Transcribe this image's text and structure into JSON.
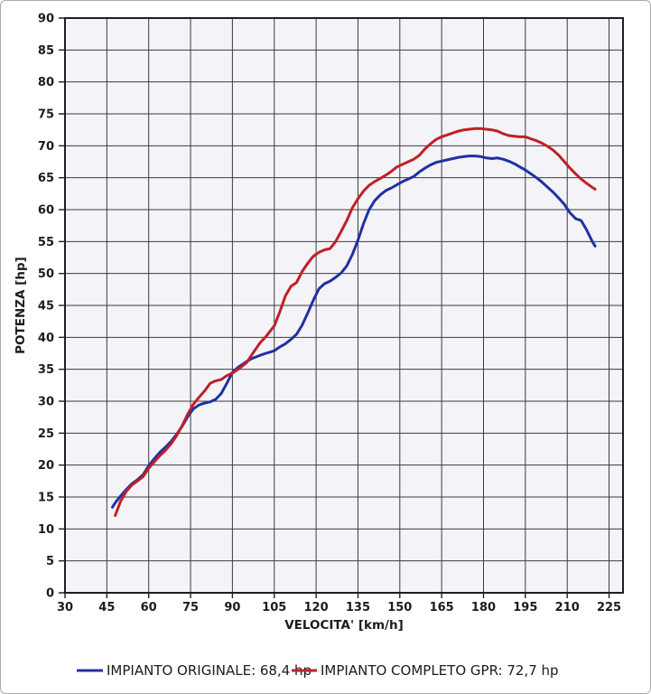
{
  "window": {
    "background": "#ffffff",
    "border_color": "#ababab"
  },
  "chart_data": {
    "type": "line",
    "title": "",
    "xlabel": "VELOCITA' [km/h]",
    "ylabel": "POTENZA [hp]",
    "x_domain": [
      30,
      230
    ],
    "y_domain": [
      0,
      90
    ],
    "x_ticks": [
      30,
      45,
      60,
      75,
      90,
      105,
      120,
      135,
      150,
      165,
      180,
      195,
      210,
      225
    ],
    "y_ticks": [
      0,
      5,
      10,
      15,
      20,
      25,
      30,
      35,
      40,
      45,
      50,
      55,
      60,
      65,
      70,
      75,
      80,
      85,
      90
    ],
    "grid": true,
    "legend_position": "bottom",
    "plot_background": "#f3f3f8",
    "grid_color": "#3c3c3c",
    "frame_color": "#1f1f1f",
    "text_color": "#1c1c1c",
    "series": [
      {
        "name": "impianto-originale",
        "label": "IMPIANTO ORIGINALE: 68,4 hp",
        "color": "#2130a3",
        "points": [
          [
            47,
            13.4
          ],
          [
            48,
            14.1
          ],
          [
            50,
            15.2
          ],
          [
            52,
            16.2
          ],
          [
            54,
            17.1
          ],
          [
            56,
            17.7
          ],
          [
            58,
            18.5
          ],
          [
            60,
            19.9
          ],
          [
            62,
            21.0
          ],
          [
            64,
            22.0
          ],
          [
            66,
            22.8
          ],
          [
            68,
            23.7
          ],
          [
            70,
            24.8
          ],
          [
            72,
            26.1
          ],
          [
            74,
            27.6
          ],
          [
            76,
            28.8
          ],
          [
            78,
            29.4
          ],
          [
            80,
            29.7
          ],
          [
            82,
            29.9
          ],
          [
            84,
            30.3
          ],
          [
            86,
            31.2
          ],
          [
            88,
            32.8
          ],
          [
            90,
            34.5
          ],
          [
            92,
            35.3
          ],
          [
            95,
            36.2
          ],
          [
            97,
            36.7
          ],
          [
            100,
            37.2
          ],
          [
            102,
            37.5
          ],
          [
            105,
            37.9
          ],
          [
            107,
            38.5
          ],
          [
            109,
            39.0
          ],
          [
            111,
            39.7
          ],
          [
            113,
            40.5
          ],
          [
            115,
            41.9
          ],
          [
            117,
            43.8
          ],
          [
            119,
            45.8
          ],
          [
            121,
            47.6
          ],
          [
            123,
            48.4
          ],
          [
            125,
            48.8
          ],
          [
            127,
            49.4
          ],
          [
            129,
            50.1
          ],
          [
            131,
            51.2
          ],
          [
            133,
            53.0
          ],
          [
            135,
            55.2
          ],
          [
            137,
            57.8
          ],
          [
            139,
            60.0
          ],
          [
            141,
            61.4
          ],
          [
            143,
            62.3
          ],
          [
            145,
            63.0
          ],
          [
            147,
            63.4
          ],
          [
            149,
            63.9
          ],
          [
            151,
            64.4
          ],
          [
            153,
            64.8
          ],
          [
            155,
            65.2
          ],
          [
            157,
            65.9
          ],
          [
            159,
            66.5
          ],
          [
            161,
            67.0
          ],
          [
            163,
            67.4
          ],
          [
            165,
            67.6
          ],
          [
            167,
            67.8
          ],
          [
            169,
            68.0
          ],
          [
            171,
            68.2
          ],
          [
            173,
            68.3
          ],
          [
            175,
            68.4
          ],
          [
            177,
            68.4
          ],
          [
            179,
            68.3
          ],
          [
            181,
            68.1
          ],
          [
            183,
            68.0
          ],
          [
            185,
            68.1
          ],
          [
            187,
            67.9
          ],
          [
            189,
            67.6
          ],
          [
            191,
            67.2
          ],
          [
            193,
            66.7
          ],
          [
            195,
            66.2
          ],
          [
            197,
            65.6
          ],
          [
            199,
            65.0
          ],
          [
            201,
            64.3
          ],
          [
            203,
            63.5
          ],
          [
            205,
            62.7
          ],
          [
            207,
            61.8
          ],
          [
            209,
            60.8
          ],
          [
            211,
            59.5
          ],
          [
            213,
            58.6
          ],
          [
            215,
            58.3
          ],
          [
            217,
            56.8
          ],
          [
            219,
            55.0
          ],
          [
            220,
            54.3
          ]
        ]
      },
      {
        "name": "impianto-completo-gpr",
        "label": "IMPIANTO COMPLETO GPR: 72,7 hp",
        "color": "#c02025",
        "points": [
          [
            48,
            12.1
          ],
          [
            50,
            14.4
          ],
          [
            52,
            15.9
          ],
          [
            54,
            16.9
          ],
          [
            56,
            17.5
          ],
          [
            58,
            18.2
          ],
          [
            60,
            19.5
          ],
          [
            62,
            20.5
          ],
          [
            64,
            21.5
          ],
          [
            66,
            22.3
          ],
          [
            68,
            23.3
          ],
          [
            70,
            24.6
          ],
          [
            72,
            26.2
          ],
          [
            74,
            28.0
          ],
          [
            76,
            29.5
          ],
          [
            78,
            30.6
          ],
          [
            80,
            31.6
          ],
          [
            82,
            32.8
          ],
          [
            84,
            33.2
          ],
          [
            86,
            33.4
          ],
          [
            88,
            34.0
          ],
          [
            90,
            34.4
          ],
          [
            92,
            35.0
          ],
          [
            95,
            36.0
          ],
          [
            97,
            37.3
          ],
          [
            100,
            39.2
          ],
          [
            102,
            40.1
          ],
          [
            105,
            41.8
          ],
          [
            107,
            44.0
          ],
          [
            109,
            46.5
          ],
          [
            111,
            48.0
          ],
          [
            113,
            48.6
          ],
          [
            115,
            50.3
          ],
          [
            117,
            51.6
          ],
          [
            119,
            52.7
          ],
          [
            121,
            53.3
          ],
          [
            123,
            53.7
          ],
          [
            125,
            53.9
          ],
          [
            127,
            55.0
          ],
          [
            129,
            56.6
          ],
          [
            131,
            58.3
          ],
          [
            133,
            60.3
          ],
          [
            135,
            61.7
          ],
          [
            137,
            62.9
          ],
          [
            139,
            63.8
          ],
          [
            141,
            64.4
          ],
          [
            143,
            64.9
          ],
          [
            145,
            65.4
          ],
          [
            147,
            66.0
          ],
          [
            149,
            66.7
          ],
          [
            151,
            67.1
          ],
          [
            153,
            67.5
          ],
          [
            155,
            67.9
          ],
          [
            157,
            68.5
          ],
          [
            159,
            69.5
          ],
          [
            161,
            70.3
          ],
          [
            163,
            71.0
          ],
          [
            165,
            71.4
          ],
          [
            167,
            71.7
          ],
          [
            169,
            72.0
          ],
          [
            171,
            72.3
          ],
          [
            173,
            72.5
          ],
          [
            175,
            72.6
          ],
          [
            177,
            72.7
          ],
          [
            179,
            72.7
          ],
          [
            181,
            72.6
          ],
          [
            183,
            72.5
          ],
          [
            185,
            72.3
          ],
          [
            187,
            71.9
          ],
          [
            189,
            71.6
          ],
          [
            191,
            71.5
          ],
          [
            193,
            71.4
          ],
          [
            195,
            71.4
          ],
          [
            197,
            71.1
          ],
          [
            199,
            70.8
          ],
          [
            201,
            70.4
          ],
          [
            203,
            69.9
          ],
          [
            205,
            69.3
          ],
          [
            207,
            68.5
          ],
          [
            209,
            67.5
          ],
          [
            211,
            66.5
          ],
          [
            213,
            65.6
          ],
          [
            215,
            64.8
          ],
          [
            217,
            64.1
          ],
          [
            219,
            63.5
          ],
          [
            220,
            63.2
          ]
        ]
      }
    ]
  }
}
